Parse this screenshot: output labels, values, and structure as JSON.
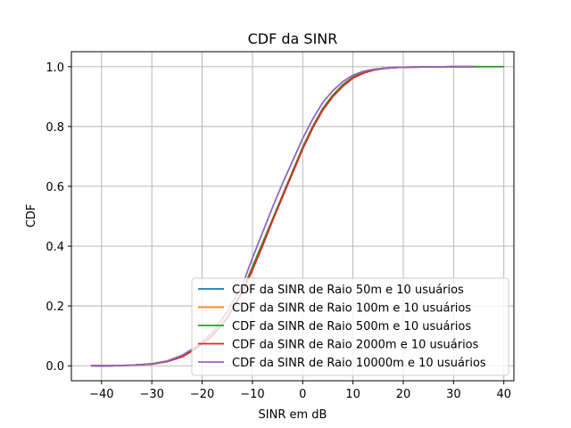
{
  "chart_data": {
    "type": "line",
    "title": "CDF da SINR",
    "xlabel": "SINR em dB",
    "ylabel": "CDF",
    "xlim": [
      -46,
      42
    ],
    "ylim": [
      -0.05,
      1.05
    ],
    "xticks": [
      -40,
      -30,
      -20,
      -10,
      0,
      10,
      20,
      30,
      40
    ],
    "xtick_labels": [
      "−40",
      "−30",
      "−20",
      "−10",
      "0",
      "10",
      "20",
      "30",
      "40"
    ],
    "yticks": [
      0.0,
      0.2,
      0.4,
      0.6,
      0.8,
      1.0
    ],
    "ytick_labels": [
      "0.0",
      "0.2",
      "0.4",
      "0.6",
      "0.8",
      "1.0"
    ],
    "grid": true,
    "legend_position": "lower-right",
    "series": [
      {
        "name": "CDF da SINR de Raio 50m e 10 usuários",
        "color": "#1f77b4",
        "x": [
          -42,
          -38,
          -34,
          -30,
          -27,
          -24,
          -21,
          -18,
          -15,
          -12,
          -10,
          -8,
          -6,
          -4,
          -2,
          0,
          2,
          4,
          6,
          8,
          10,
          12,
          14,
          16,
          18,
          20,
          24,
          30,
          34
        ],
        "y": [
          0.0,
          0.0,
          0.002,
          0.006,
          0.014,
          0.03,
          0.06,
          0.1,
          0.16,
          0.25,
          0.33,
          0.41,
          0.49,
          0.57,
          0.65,
          0.73,
          0.8,
          0.86,
          0.905,
          0.94,
          0.965,
          0.98,
          0.989,
          0.994,
          0.997,
          0.998,
          0.999,
          1.0,
          1.0
        ]
      },
      {
        "name": "CDF da SINR de Raio 100m e 10 usuários",
        "color": "#ff7f0e",
        "x": [
          -42,
          -38,
          -34,
          -30,
          -27,
          -24,
          -21,
          -18,
          -15,
          -12,
          -10,
          -8,
          -6,
          -4,
          -2,
          0,
          2,
          4,
          6,
          8,
          10,
          12,
          14,
          16,
          18,
          20,
          24,
          30,
          35
        ],
        "y": [
          0.0,
          0.0,
          0.002,
          0.006,
          0.014,
          0.03,
          0.06,
          0.1,
          0.16,
          0.25,
          0.33,
          0.41,
          0.49,
          0.57,
          0.65,
          0.73,
          0.8,
          0.86,
          0.905,
          0.94,
          0.965,
          0.98,
          0.989,
          0.994,
          0.997,
          0.998,
          0.999,
          1.0,
          1.0
        ]
      },
      {
        "name": "CDF da SINR de Raio 500m e 10 usuários",
        "color": "#2ca02c",
        "x": [
          -42,
          -38,
          -34,
          -30,
          -27,
          -24,
          -21,
          -18,
          -15,
          -12,
          -10,
          -8,
          -6,
          -4,
          -2,
          0,
          2,
          4,
          6,
          8,
          10,
          12,
          14,
          16,
          18,
          20,
          24,
          30,
          36,
          40
        ],
        "y": [
          0.0,
          0.0,
          0.002,
          0.006,
          0.014,
          0.03,
          0.06,
          0.1,
          0.16,
          0.25,
          0.33,
          0.41,
          0.49,
          0.57,
          0.65,
          0.73,
          0.8,
          0.86,
          0.905,
          0.94,
          0.965,
          0.98,
          0.989,
          0.994,
          0.997,
          0.998,
          0.999,
          1.0,
          1.0,
          1.0
        ]
      },
      {
        "name": "CDF da SINR de Raio 2000m e 10 usuários",
        "color": "#d62728",
        "x": [
          -42,
          -38,
          -34,
          -30,
          -27,
          -24,
          -21,
          -18,
          -15,
          -12,
          -10,
          -8,
          -6,
          -4,
          -2,
          0,
          2,
          4,
          6,
          8,
          10,
          12,
          14,
          16,
          18,
          20,
          24,
          30,
          34
        ],
        "y": [
          0.0,
          0.0,
          0.002,
          0.006,
          0.014,
          0.03,
          0.06,
          0.1,
          0.16,
          0.245,
          0.32,
          0.4,
          0.485,
          0.565,
          0.645,
          0.725,
          0.795,
          0.855,
          0.9,
          0.935,
          0.962,
          0.978,
          0.988,
          0.994,
          0.997,
          0.998,
          0.999,
          1.0,
          1.0
        ]
      },
      {
        "name": "CDF da SINR de Raio 10000m e 10 usuários",
        "color": "#9467bd",
        "x": [
          -42,
          -38,
          -34,
          -30,
          -27,
          -24,
          -21,
          -18,
          -15,
          -12,
          -10,
          -8,
          -6,
          -4,
          -2,
          0,
          2,
          4,
          6,
          8,
          10,
          12,
          14,
          16,
          18,
          20,
          24,
          30,
          34
        ],
        "y": [
          0.0,
          0.0,
          0.002,
          0.007,
          0.016,
          0.035,
          0.066,
          0.11,
          0.18,
          0.27,
          0.36,
          0.445,
          0.53,
          0.61,
          0.685,
          0.76,
          0.825,
          0.88,
          0.92,
          0.95,
          0.972,
          0.984,
          0.991,
          0.995,
          0.997,
          0.998,
          0.999,
          1.0,
          1.0
        ]
      }
    ]
  }
}
